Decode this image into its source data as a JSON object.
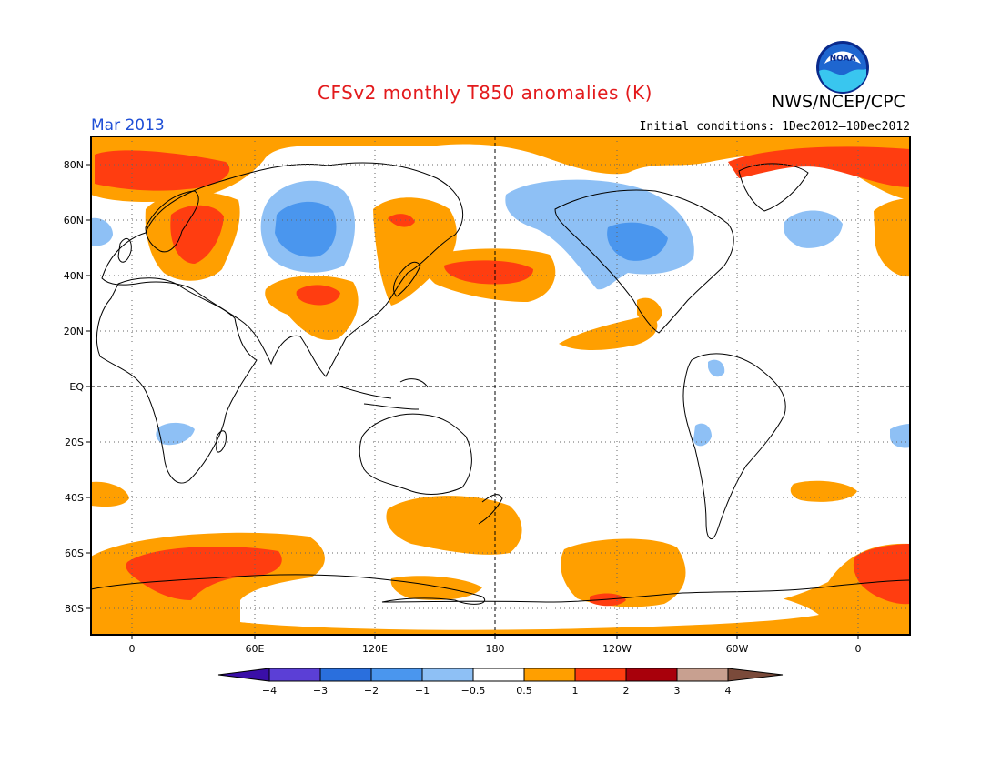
{
  "header": {
    "title": "CFSv2 monthly T850 anomalies (K)",
    "period": "Mar 2013",
    "agency": "NWS/NCEP/CPC",
    "initial_conditions": "Initial conditions: 1Dec2012—10Dec2012",
    "logo_text": "NOAA"
  },
  "axes": {
    "lat_labels": [
      "80N",
      "60N",
      "40N",
      "20N",
      "EQ",
      "20S",
      "40S",
      "60S",
      "80S"
    ],
    "lon_labels": [
      "0",
      "60E",
      "120E",
      "180",
      "120W",
      "60W",
      "0"
    ]
  },
  "colorbar": {
    "labels": [
      "−4",
      "−3",
      "−2",
      "−1",
      "−0.5",
      "0.5",
      "1",
      "2",
      "3",
      "4"
    ],
    "colors": [
      "#3a0fa8",
      "#5b3fd6",
      "#2a6fdd",
      "#4a96ee",
      "#8ec0f5",
      "#ffffff",
      "#ff9f00",
      "#ff3d10",
      "#a8000b",
      "#c8a090",
      "#7a4a3a"
    ]
  },
  "map_colors": {
    "cold_light": "#8ec0f5",
    "cold_mid": "#4a96ee",
    "warm_light": "#ff9f00",
    "warm_mid": "#ff3d10",
    "land_outline": "#000000",
    "background": "#ffffff"
  }
}
